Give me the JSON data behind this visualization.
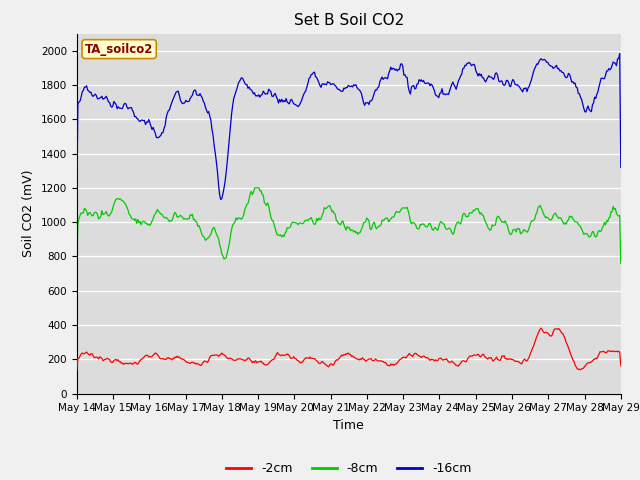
{
  "title": "Set B Soil CO2",
  "ylabel": "Soil CO2 (mV)",
  "xlabel": "Time",
  "annotation": "TA_soilco2",
  "plot_bg_color": "#dcdcdc",
  "fig_bg_color": "#f0f0f0",
  "ylim": [
    0,
    2100
  ],
  "yticks": [
    0,
    200,
    400,
    600,
    800,
    1000,
    1200,
    1400,
    1600,
    1800,
    2000
  ],
  "xtick_labels": [
    "May 14",
    "May 15",
    "May 16",
    "May 17",
    "May 18",
    "May 19",
    "May 20",
    "May 21",
    "May 22",
    "May 23",
    "May 24",
    "May 25",
    "May 26",
    "May 27",
    "May 28",
    "May 29"
  ],
  "legend": [
    {
      "label": "-2cm",
      "color": "#ff0000"
    },
    {
      "label": "-8cm",
      "color": "#00cc00"
    },
    {
      "label": "-16cm",
      "color": "#0000cc"
    }
  ],
  "title_fontsize": 11,
  "axis_label_fontsize": 9,
  "tick_fontsize": 7.5,
  "annotation_fontsize": 8.5
}
